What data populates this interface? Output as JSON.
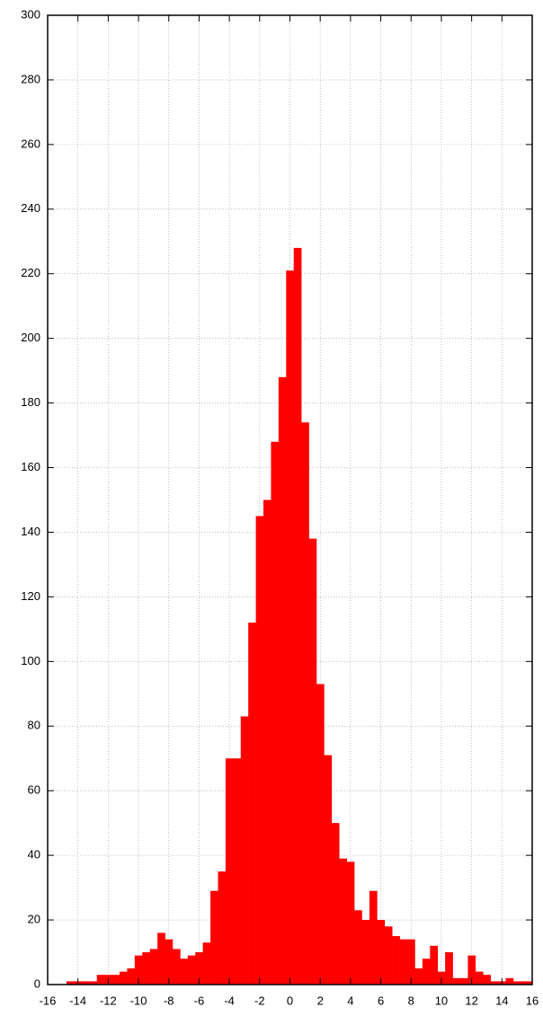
{
  "chart_data": {
    "type": "histogram",
    "bins": [
      -14.75,
      -14.25,
      -13.75,
      -13.25,
      -12.75,
      -12.25,
      -11.75,
      -11.25,
      -10.75,
      -10.25,
      -9.75,
      -9.25,
      -8.75,
      -8.25,
      -7.75,
      -7.25,
      -6.75,
      -6.25,
      -5.75,
      -5.25,
      -4.75,
      -4.25,
      -3.75,
      -3.25,
      -2.75,
      -2.25,
      -1.75,
      -1.25,
      -0.75,
      -0.25,
      0.25,
      0.75,
      1.25,
      1.75,
      2.25,
      2.75,
      3.25,
      3.75,
      4.25,
      4.75,
      5.25,
      5.75,
      6.25,
      6.75,
      7.25,
      7.75,
      8.25,
      8.75,
      9.25,
      9.75,
      10.25,
      10.75,
      11.25,
      11.75,
      12.25,
      12.75,
      13.25,
      13.75,
      14.25,
      14.75,
      15.25,
      15.75,
      16.25
    ],
    "counts": [
      1,
      1,
      1,
      1,
      3,
      3,
      3,
      4,
      5,
      9,
      10,
      11,
      16,
      14,
      11,
      8,
      9,
      10,
      13,
      29,
      35,
      70,
      70,
      83,
      112,
      145,
      150,
      168,
      188,
      221,
      228,
      174,
      138,
      93,
      71,
      50,
      39,
      38,
      23,
      20,
      29,
      20,
      18,
      15,
      14,
      14,
      5,
      8,
      12,
      4,
      10,
      2,
      2,
      9,
      4,
      3,
      1,
      1,
      2,
      1,
      1,
      1
    ],
    "color": "#ff0000",
    "xlim": [
      -16,
      16
    ],
    "xticks": [
      -16,
      -14,
      -12,
      -10,
      -8,
      -6,
      -4,
      -2,
      0,
      2,
      4,
      6,
      8,
      10,
      12,
      14,
      16
    ],
    "ylim": [
      0,
      300
    ],
    "yticks": [
      0,
      20,
      40,
      60,
      80,
      100,
      120,
      140,
      160,
      180,
      200,
      220,
      240,
      260,
      280,
      300
    ],
    "grid": true
  }
}
